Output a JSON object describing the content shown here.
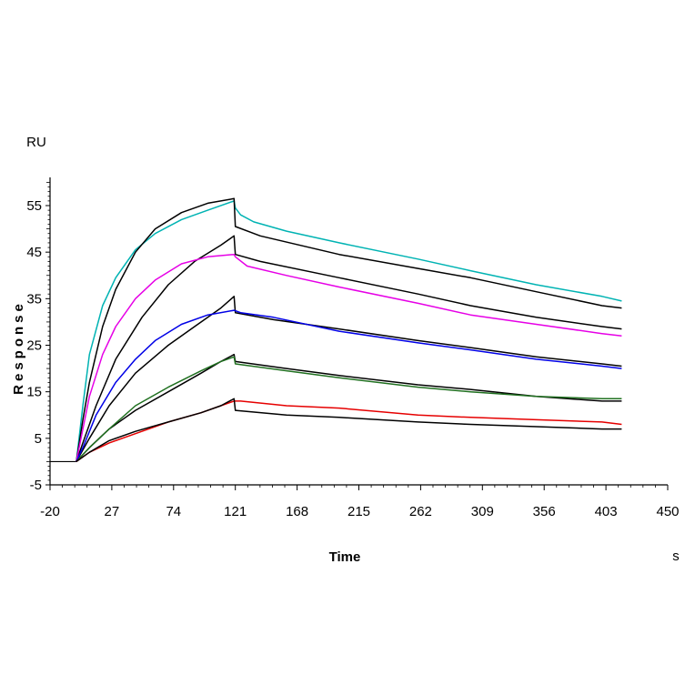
{
  "chart_data": {
    "type": "line",
    "xlabel": "Time",
    "ylabel": "Response",
    "xunit": "s",
    "yunit": "RU",
    "xlim": [
      -20,
      450
    ],
    "ylim": [
      -5,
      60
    ],
    "xticks": [
      -20,
      27,
      74,
      121,
      168,
      215,
      262,
      309,
      356,
      403,
      450
    ],
    "yticks": [
      -5,
      5,
      15,
      25,
      35,
      45,
      55
    ],
    "grid": false,
    "legend": "none",
    "series": [
      {
        "color": "#00b3b3",
        "values": [
          [
            0,
            0
          ],
          [
            5,
            12
          ],
          [
            10,
            23
          ],
          [
            20,
            33.5
          ],
          [
            30,
            39.5
          ],
          [
            45,
            45.5
          ],
          [
            60,
            49
          ],
          [
            80,
            52
          ],
          [
            100,
            54
          ],
          [
            120,
            56
          ],
          [
            121,
            54.5
          ],
          [
            125,
            53
          ],
          [
            135,
            51.5
          ],
          [
            160,
            49.5
          ],
          [
            200,
            47
          ],
          [
            260,
            43.5
          ],
          [
            300,
            41
          ],
          [
            350,
            38
          ],
          [
            400,
            35.5
          ],
          [
            415,
            34.5
          ]
        ]
      },
      {
        "color": "#000000",
        "values": [
          [
            0,
            0
          ],
          [
            5,
            9
          ],
          [
            10,
            17
          ],
          [
            20,
            29
          ],
          [
            30,
            37
          ],
          [
            45,
            45
          ],
          [
            60,
            50
          ],
          [
            80,
            53.5
          ],
          [
            100,
            55.5
          ],
          [
            120,
            56.5
          ],
          [
            121,
            50.5
          ],
          [
            140,
            48.5
          ],
          [
            200,
            44.5
          ],
          [
            260,
            41.5
          ],
          [
            300,
            39.5
          ],
          [
            350,
            36.5
          ],
          [
            400,
            33.5
          ],
          [
            415,
            33
          ]
        ]
      },
      {
        "color": "#000000",
        "values": [
          [
            0,
            0
          ],
          [
            5,
            4
          ],
          [
            15,
            12
          ],
          [
            30,
            22
          ],
          [
            50,
            31
          ],
          [
            70,
            38
          ],
          [
            90,
            43
          ],
          [
            110,
            46.5
          ],
          [
            120,
            48.5
          ],
          [
            121,
            44.5
          ],
          [
            140,
            43
          ],
          [
            200,
            39.5
          ],
          [
            260,
            36
          ],
          [
            300,
            33.5
          ],
          [
            350,
            31
          ],
          [
            400,
            29
          ],
          [
            415,
            28.5
          ]
        ]
      },
      {
        "color": "#e600e6",
        "values": [
          [
            0,
            0
          ],
          [
            5,
            7
          ],
          [
            10,
            14
          ],
          [
            20,
            23
          ],
          [
            30,
            29
          ],
          [
            45,
            35
          ],
          [
            60,
            39
          ],
          [
            80,
            42.5
          ],
          [
            100,
            44
          ],
          [
            120,
            44.5
          ],
          [
            121,
            44
          ],
          [
            130,
            42
          ],
          [
            160,
            40
          ],
          [
            200,
            37.5
          ],
          [
            260,
            34
          ],
          [
            300,
            31.5
          ],
          [
            350,
            29.5
          ],
          [
            400,
            27.5
          ],
          [
            415,
            27
          ]
        ]
      },
      {
        "color": "#000000",
        "values": [
          [
            0,
            0
          ],
          [
            10,
            5
          ],
          [
            25,
            12
          ],
          [
            45,
            19
          ],
          [
            70,
            25
          ],
          [
            90,
            29
          ],
          [
            110,
            33
          ],
          [
            120,
            35.5
          ],
          [
            121,
            32
          ],
          [
            150,
            30.5
          ],
          [
            200,
            28.5
          ],
          [
            260,
            26
          ],
          [
            300,
            24.5
          ],
          [
            350,
            22.5
          ],
          [
            400,
            21
          ],
          [
            415,
            20.5
          ]
        ]
      },
      {
        "color": "#0000e6",
        "values": [
          [
            0,
            0
          ],
          [
            5,
            3
          ],
          [
            15,
            10
          ],
          [
            30,
            17
          ],
          [
            45,
            22
          ],
          [
            60,
            26
          ],
          [
            80,
            29.5
          ],
          [
            100,
            31.5
          ],
          [
            120,
            32.5
          ],
          [
            125,
            32
          ],
          [
            150,
            31
          ],
          [
            200,
            28
          ],
          [
            260,
            25.5
          ],
          [
            300,
            24
          ],
          [
            350,
            22
          ],
          [
            400,
            20.5
          ],
          [
            415,
            20
          ]
        ]
      },
      {
        "color": "#000000",
        "values": [
          [
            0,
            0
          ],
          [
            10,
            3
          ],
          [
            25,
            7
          ],
          [
            45,
            11
          ],
          [
            70,
            15
          ],
          [
            95,
            19
          ],
          [
            110,
            21.5
          ],
          [
            120,
            23
          ],
          [
            121,
            21.5
          ],
          [
            160,
            20
          ],
          [
            200,
            18.5
          ],
          [
            260,
            16.5
          ],
          [
            300,
            15.5
          ],
          [
            350,
            14
          ],
          [
            400,
            13
          ],
          [
            415,
            13
          ]
        ]
      },
      {
        "color": "#207020",
        "values": [
          [
            0,
            0
          ],
          [
            10,
            3
          ],
          [
            25,
            7
          ],
          [
            45,
            12
          ],
          [
            70,
            16
          ],
          [
            95,
            19.5
          ],
          [
            110,
            21.5
          ],
          [
            120,
            22.5
          ],
          [
            121,
            21
          ],
          [
            160,
            19.5
          ],
          [
            200,
            18
          ],
          [
            260,
            16
          ],
          [
            300,
            15
          ],
          [
            350,
            14
          ],
          [
            400,
            13.5
          ],
          [
            415,
            13.5
          ]
        ]
      },
      {
        "color": "#e60000",
        "values": [
          [
            0,
            0
          ],
          [
            10,
            2
          ],
          [
            25,
            4
          ],
          [
            45,
            6
          ],
          [
            70,
            8.5
          ],
          [
            95,
            10.5
          ],
          [
            110,
            12
          ],
          [
            120,
            13
          ],
          [
            125,
            13
          ],
          [
            160,
            12
          ],
          [
            200,
            11.5
          ],
          [
            260,
            10
          ],
          [
            300,
            9.5
          ],
          [
            350,
            9
          ],
          [
            400,
            8.5
          ],
          [
            415,
            8
          ]
        ]
      },
      {
        "color": "#000000",
        "values": [
          [
            0,
            0
          ],
          [
            10,
            2
          ],
          [
            25,
            4.5
          ],
          [
            45,
            6.5
          ],
          [
            70,
            8.5
          ],
          [
            95,
            10.5
          ],
          [
            110,
            12
          ],
          [
            120,
            13.5
          ],
          [
            121,
            11
          ],
          [
            160,
            10
          ],
          [
            200,
            9.5
          ],
          [
            260,
            8.5
          ],
          [
            300,
            8
          ],
          [
            350,
            7.5
          ],
          [
            400,
            7
          ],
          [
            415,
            7
          ]
        ]
      }
    ]
  }
}
